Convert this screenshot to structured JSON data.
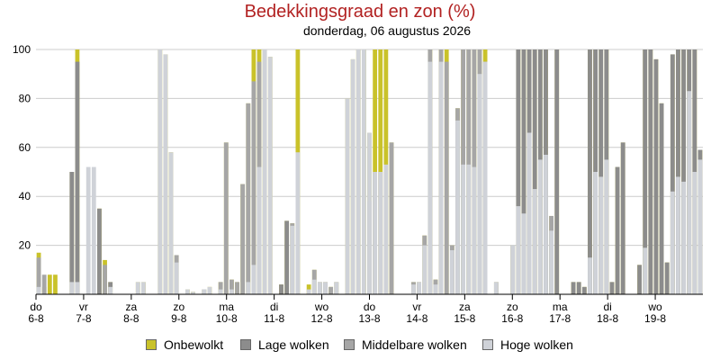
{
  "chart_data": {
    "type": "bar",
    "stacked": true,
    "title": "Bedekkingsgraad en zon (%)",
    "subtitle": "donderdag, 06 augustus 2026",
    "ylim": [
      0,
      100
    ],
    "yticks": [
      20,
      40,
      60,
      80,
      100
    ],
    "grid": true,
    "legend_position": "bottom",
    "day_labels": [
      {
        "day": "do",
        "date": "6-8"
      },
      {
        "day": "vr",
        "date": "7-8"
      },
      {
        "day": "za",
        "date": "8-8"
      },
      {
        "day": "zo",
        "date": "9-8"
      },
      {
        "day": "ma",
        "date": "10-8"
      },
      {
        "day": "di",
        "date": "11-8"
      },
      {
        "day": "wo",
        "date": "12-8"
      },
      {
        "day": "do",
        "date": "13-8"
      },
      {
        "day": "vr",
        "date": "14-8"
      },
      {
        "day": "za",
        "date": "15-8"
      },
      {
        "day": "zo",
        "date": "16-8"
      },
      {
        "day": "ma",
        "date": "17-8"
      },
      {
        "day": "di",
        "date": "18-8"
      },
      {
        "day": "wo",
        "date": "19-8"
      }
    ],
    "series_colors": {
      "onbewolkt": "#c9c22a",
      "lage": "#8c8c8c",
      "middelbare": "#a6a6a6",
      "hoge": "#cfd2d8"
    },
    "series": [
      {
        "name": "Onbewolkt",
        "key": "onbewolkt"
      },
      {
        "name": "Lage wolken",
        "key": "lage"
      },
      {
        "name": "Middelbare wolken",
        "key": "middelbare"
      },
      {
        "name": "Hoge wolken",
        "key": "hoge"
      }
    ],
    "bars": [
      [
        17,
        0,
        15,
        3
      ],
      [
        3,
        0,
        8,
        0
      ],
      [
        8,
        0,
        0,
        0
      ],
      [
        8,
        0,
        0,
        0
      ],
      [
        0,
        0,
        0,
        0
      ],
      [
        0,
        0,
        0,
        0
      ],
      [
        50,
        50,
        0,
        5
      ],
      [
        100,
        95,
        0,
        5
      ],
      [
        0,
        0,
        0,
        0
      ],
      [
        0,
        0,
        0,
        52
      ],
      [
        0,
        0,
        0,
        52
      ],
      [
        35,
        35,
        0,
        0
      ],
      [
        14,
        0,
        12,
        0
      ],
      [
        5,
        5,
        0,
        3
      ],
      [
        0,
        0,
        0,
        0
      ],
      [
        0,
        0,
        0,
        0
      ],
      [
        0,
        0,
        0,
        0
      ],
      [
        0,
        0,
        0,
        0
      ],
      [
        5,
        0,
        0,
        5
      ],
      [
        5,
        0,
        0,
        5
      ],
      [
        0,
        0,
        0,
        0
      ],
      [
        0,
        0,
        0,
        0
      ],
      [
        100,
        0,
        0,
        100
      ],
      [
        98,
        0,
        0,
        98
      ],
      [
        58,
        0,
        0,
        58
      ],
      [
        16,
        0,
        16,
        13
      ],
      [
        0,
        0,
        0,
        0
      ],
      [
        2,
        0,
        0,
        2
      ],
      [
        1,
        0,
        0,
        1
      ],
      [
        0,
        0,
        0,
        0
      ],
      [
        2,
        0,
        2,
        2
      ],
      [
        3,
        0,
        0,
        3
      ],
      [
        0,
        0,
        0,
        0
      ],
      [
        5,
        0,
        5,
        2
      ],
      [
        62,
        0,
        62,
        0
      ],
      [
        6,
        0,
        6,
        2
      ],
      [
        5,
        0,
        5,
        0
      ],
      [
        45,
        0,
        45,
        0
      ],
      [
        78,
        0,
        78,
        5
      ],
      [
        100,
        0,
        87,
        12
      ],
      [
        100,
        0,
        95,
        52
      ],
      [
        100,
        0,
        0,
        100
      ],
      [
        97,
        0,
        0,
        97
      ],
      [
        0,
        0,
        0,
        0
      ],
      [
        4,
        4,
        0,
        0
      ],
      [
        30,
        30,
        0,
        0
      ],
      [
        29,
        0,
        29,
        28
      ],
      [
        100,
        0,
        0,
        58
      ],
      [
        0,
        0,
        0,
        0
      ],
      [
        4,
        0,
        0,
        2
      ],
      [
        10,
        0,
        10,
        6
      ],
      [
        5,
        0,
        5,
        5
      ],
      [
        5,
        0,
        5,
        5
      ],
      [
        3,
        0,
        3,
        0
      ],
      [
        5,
        0,
        5,
        5
      ],
      [
        0,
        0,
        0,
        0
      ],
      [
        80,
        0,
        0,
        80
      ],
      [
        96,
        0,
        0,
        96
      ],
      [
        100,
        0,
        0,
        100
      ],
      [
        100,
        0,
        0,
        100
      ],
      [
        66,
        0,
        38,
        66
      ],
      [
        100,
        0,
        50,
        50
      ],
      [
        100,
        0,
        50,
        50
      ],
      [
        100,
        0,
        0,
        53
      ],
      [
        62,
        0,
        62,
        0
      ],
      [
        0,
        0,
        0,
        0
      ],
      [
        0,
        0,
        0,
        0
      ],
      [
        0,
        0,
        0,
        0
      ],
      [
        5,
        0,
        5,
        4
      ],
      [
        5,
        0,
        5,
        5
      ],
      [
        24,
        0,
        24,
        20
      ],
      [
        100,
        0,
        100,
        95
      ],
      [
        6,
        0,
        6,
        4
      ],
      [
        100,
        0,
        100,
        95
      ],
      [
        100,
        0,
        95,
        0
      ],
      [
        20,
        0,
        20,
        18
      ],
      [
        76,
        0,
        76,
        71
      ],
      [
        100,
        0,
        100,
        53
      ],
      [
        100,
        0,
        100,
        53
      ],
      [
        100,
        0,
        100,
        52
      ],
      [
        100,
        0,
        100,
        90
      ],
      [
        100,
        0,
        95,
        95
      ],
      [
        0,
        0,
        0,
        0
      ],
      [
        5,
        0,
        5,
        5
      ],
      [
        0,
        0,
        0,
        0
      ],
      [
        0,
        0,
        0,
        0
      ],
      [
        20,
        0,
        20,
        20
      ],
      [
        100,
        100,
        0,
        36
      ],
      [
        100,
        100,
        0,
        33
      ],
      [
        100,
        100,
        0,
        66
      ],
      [
        100,
        100,
        0,
        43
      ],
      [
        100,
        100,
        0,
        55
      ],
      [
        100,
        100,
        0,
        57
      ],
      [
        32,
        0,
        32,
        26
      ],
      [
        100,
        100,
        0,
        0
      ],
      [
        0,
        0,
        0,
        0
      ],
      [
        0,
        0,
        0,
        0
      ],
      [
        5,
        5,
        0,
        0
      ],
      [
        5,
        5,
        0,
        0
      ],
      [
        3,
        3,
        0,
        0
      ],
      [
        100,
        100,
        0,
        15
      ],
      [
        100,
        100,
        0,
        50
      ],
      [
        100,
        100,
        0,
        48
      ],
      [
        100,
        100,
        0,
        55
      ],
      [
        5,
        5,
        0,
        0
      ],
      [
        52,
        52,
        0,
        0
      ],
      [
        62,
        62,
        0,
        0
      ],
      [
        0,
        0,
        0,
        0
      ],
      [
        0,
        0,
        0,
        0
      ],
      [
        12,
        12,
        0,
        0
      ],
      [
        100,
        100,
        0,
        19
      ],
      [
        100,
        100,
        0,
        0
      ],
      [
        96,
        96,
        0,
        0
      ],
      [
        78,
        78,
        0,
        0
      ],
      [
        13,
        13,
        0,
        0
      ],
      [
        98,
        98,
        0,
        42
      ],
      [
        100,
        100,
        0,
        48
      ],
      [
        100,
        100,
        0,
        46
      ],
      [
        100,
        100,
        0,
        83
      ],
      [
        100,
        100,
        0,
        50
      ],
      [
        59,
        59,
        0,
        55
      ]
    ]
  }
}
